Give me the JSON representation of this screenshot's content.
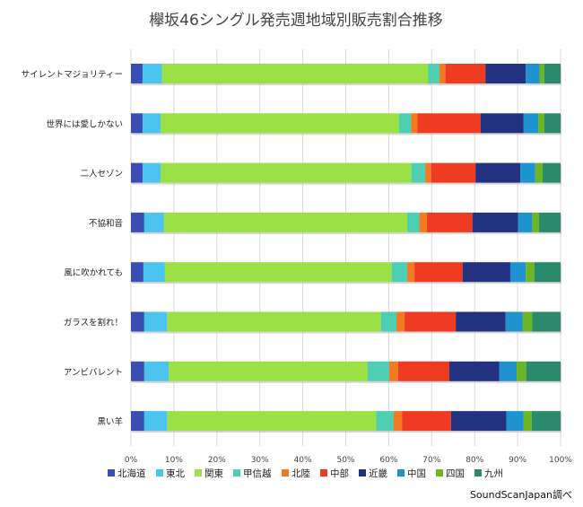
{
  "chart_data": {
    "type": "bar",
    "orientation": "horizontal",
    "stacked": "percent",
    "title": "欅坂46シングル発売週地域別販売割合推移",
    "categories": [
      "サイレントマジョリティー",
      "世界には愛しかない",
      "二人セゾン",
      "不協和音",
      "風に吹かれても",
      "ガラスを割れ！",
      "アンビバレント",
      "黒い羊"
    ],
    "xlim": [
      0,
      100
    ],
    "x_ticks": [
      "0%",
      "10%",
      "20%",
      "30%",
      "40%",
      "50%",
      "60%",
      "70%",
      "80%",
      "90%",
      "100%"
    ],
    "grid": true,
    "legend_position": "bottom",
    "series": [
      {
        "name": "北海道",
        "color": "#3a4db3",
        "values": [
          2.7,
          2.7,
          2.7,
          3.1,
          2.9,
          3.1,
          3.1,
          3.1
        ]
      },
      {
        "name": "東北",
        "color": "#4cc4f0",
        "values": [
          4.5,
          4.2,
          4.2,
          4.6,
          5.0,
          5.3,
          5.7,
          5.3
        ]
      },
      {
        "name": "関東",
        "color": "#9be145",
        "values": [
          62.0,
          55.5,
          58.4,
          56.6,
          52.8,
          49.8,
          46.3,
          48.7
        ]
      },
      {
        "name": "甲信越",
        "color": "#4ecfb3",
        "values": [
          2.6,
          2.8,
          3.2,
          2.8,
          3.6,
          3.6,
          5.0,
          4.0
        ]
      },
      {
        "name": "北陸",
        "color": "#f27a22",
        "values": [
          1.4,
          1.5,
          1.4,
          1.8,
          1.7,
          1.9,
          2.1,
          2.0
        ]
      },
      {
        "name": "中部",
        "color": "#ee3b22",
        "values": [
          9.3,
          14.7,
          10.3,
          10.6,
          11.2,
          11.9,
          11.9,
          11.4
        ]
      },
      {
        "name": "近畿",
        "color": "#233280",
        "values": [
          9.4,
          10.0,
          10.4,
          10.6,
          11.1,
          11.6,
          11.6,
          12.9
        ]
      },
      {
        "name": "中国",
        "color": "#1f93cf",
        "values": [
          3.2,
          3.4,
          3.5,
          3.3,
          3.6,
          4.0,
          4.1,
          4.0
        ]
      },
      {
        "name": "四国",
        "color": "#6cb624",
        "values": [
          1.1,
          1.4,
          1.7,
          1.6,
          2.0,
          2.2,
          2.2,
          1.9
        ]
      },
      {
        "name": "九州",
        "color": "#2a8a6c",
        "values": [
          3.8,
          3.8,
          4.2,
          5.0,
          6.1,
          6.6,
          8.0,
          6.7
        ]
      }
    ]
  },
  "credit": "SoundScanJapan調べ"
}
